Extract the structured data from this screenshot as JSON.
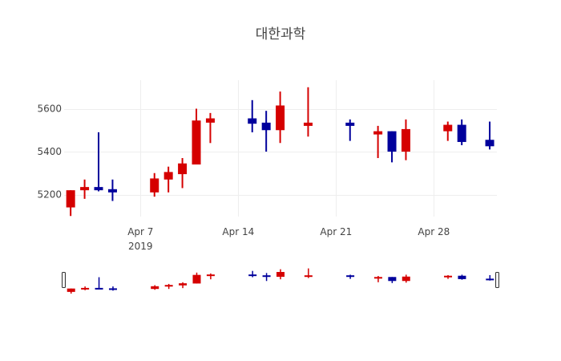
{
  "chart_data": {
    "type": "candlestick",
    "title": "대한과학",
    "xlabel": "",
    "ylabel": "",
    "x_ticks": [
      {
        "label": "Apr 7",
        "sublabel": "2019",
        "date": "2019-04-07"
      },
      {
        "label": "Apr 14",
        "sublabel": "",
        "date": "2019-04-14"
      },
      {
        "label": "Apr 21",
        "sublabel": "",
        "date": "2019-04-21"
      },
      {
        "label": "Apr 28",
        "sublabel": "",
        "date": "2019-04-28"
      }
    ],
    "y_ticks": [
      5200,
      5400,
      5600
    ],
    "ylim": [
      5080,
      5730
    ],
    "xlim": [
      "2019-04-01T12:00",
      "2019-05-02T12:00"
    ],
    "grid": true,
    "rangeslider": true,
    "increasing_color": "#d50000",
    "decreasing_color": "#00009c",
    "candles": [
      {
        "date": "2019-04-02",
        "open": 5140,
        "high": 5220,
        "low": 5100,
        "close": 5220
      },
      {
        "date": "2019-04-03",
        "open": 5220,
        "high": 5270,
        "low": 5180,
        "close": 5235
      },
      {
        "date": "2019-04-04",
        "open": 5235,
        "high": 5490,
        "low": 5215,
        "close": 5220
      },
      {
        "date": "2019-04-05",
        "open": 5225,
        "high": 5270,
        "low": 5170,
        "close": 5210
      },
      {
        "date": "2019-04-08",
        "open": 5210,
        "high": 5300,
        "low": 5190,
        "close": 5275
      },
      {
        "date": "2019-04-09",
        "open": 5270,
        "high": 5330,
        "low": 5210,
        "close": 5305
      },
      {
        "date": "2019-04-10",
        "open": 5295,
        "high": 5370,
        "low": 5230,
        "close": 5345
      },
      {
        "date": "2019-04-11",
        "open": 5340,
        "high": 5600,
        "low": 5340,
        "close": 5545
      },
      {
        "date": "2019-04-12",
        "open": 5535,
        "high": 5580,
        "low": 5440,
        "close": 5555
      },
      {
        "date": "2019-04-15",
        "open": 5555,
        "high": 5640,
        "low": 5490,
        "close": 5530
      },
      {
        "date": "2019-04-16",
        "open": 5535,
        "high": 5590,
        "low": 5400,
        "close": 5500
      },
      {
        "date": "2019-04-17",
        "open": 5500,
        "high": 5680,
        "low": 5440,
        "close": 5615
      },
      {
        "date": "2019-04-19",
        "open": 5520,
        "high": 5700,
        "low": 5470,
        "close": 5535
      },
      {
        "date": "2019-04-22",
        "open": 5535,
        "high": 5550,
        "low": 5450,
        "close": 5520
      },
      {
        "date": "2019-04-24",
        "open": 5480,
        "high": 5520,
        "low": 5370,
        "close": 5495
      },
      {
        "date": "2019-04-25",
        "open": 5495,
        "high": 5495,
        "low": 5350,
        "close": 5400
      },
      {
        "date": "2019-04-26",
        "open": 5400,
        "high": 5550,
        "low": 5360,
        "close": 5505
      },
      {
        "date": "2019-04-29",
        "open": 5495,
        "high": 5540,
        "low": 5450,
        "close": 5525
      },
      {
        "date": "2019-04-30",
        "open": 5525,
        "high": 5550,
        "low": 5430,
        "close": 5445
      },
      {
        "date": "2019-05-02",
        "open": 5455,
        "high": 5540,
        "low": 5410,
        "close": 5425
      }
    ]
  }
}
